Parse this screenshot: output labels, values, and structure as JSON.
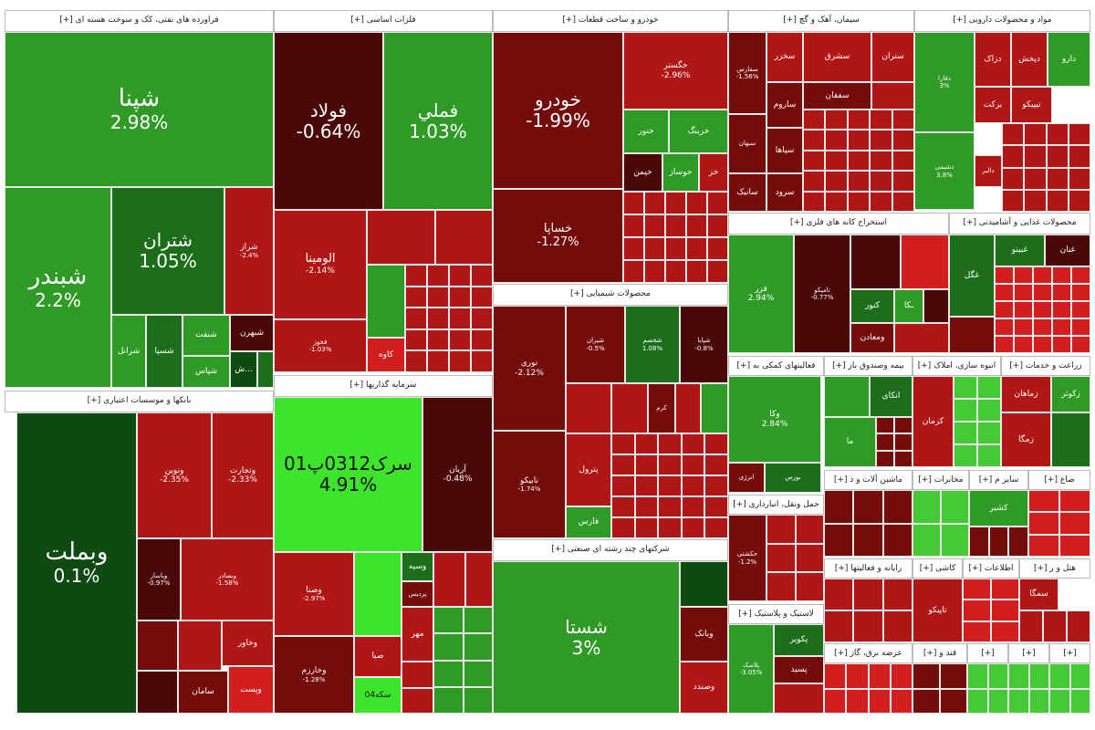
{
  "sectors": {
    "oil": "فراورده های نفتی، کک و سوخت هسته ای [+]",
    "metals": "فلزات اساسی [+]",
    "auto": "خودرو و ساخت قطعات [+]",
    "cement": "سیمان، آهک و گچ [+]",
    "pharma": "مواد و محصولات دارویی [+]",
    "banks": "بانکها و موسسات اعتباری [+]",
    "invest": "سرمایه گذاریها [+]",
    "chem": "محصولات شیمیایی [+]",
    "multi": "شرکتهای چند رشته ای صنعتی [+]",
    "mining": "استخراج کانه های فلزی [+]",
    "food": "محصولات غذایی و آشامیدنی [+]",
    "support": "فعالیتهای کمکی به [+]",
    "insurance": "بیمه وصندوق باز [+]",
    "build": "انبوه سازی، املاک [+]",
    "agri": "زراعت و خدمات [+]",
    "transport": "حمل ونقل، انبارداری [+]",
    "machine": "ماشین آلات و د [+]",
    "telecom": "مخابرات [+]",
    "other1": "سایر م [+]",
    "other2": "صاع [+]",
    "rubber": "لاستیک و پلاستیک [+]",
    "computer": "رایانه و فعالیتها [+]",
    "mnt": "کاشی [+]",
    "info": "اطلاعات [+]",
    "hotel": "هتل و ر [+]",
    "power": "عرضه برق، گاز [+]",
    "wood": "قند و [+]",
    "p1": "[+]",
    "p2": "[+]",
    "p3": "[+]",
    "p4": "[+]"
  },
  "tiles": {
    "shpna": {
      "n": "شپنا",
      "v": "2.98%"
    },
    "shbandar": {
      "n": "شبندر",
      "v": "2.2%"
    },
    "shetran": {
      "n": "شتران",
      "v": "1.05%"
    },
    "shiraz": {
      "n": "شراز",
      "v": "-2.4%"
    },
    "sharanol": {
      "n": "شرانل"
    },
    "shsina": {
      "n": "شسپا"
    },
    "shafaf": {
      "n": "شنفت"
    },
    "shpas": {
      "n": "شپاس"
    },
    "shbehran": {
      "n": "شبهرن"
    },
    "sh": {
      "n": "ش..."
    },
    "vbmellat": {
      "n": "وبملت",
      "v": "0.1%"
    },
    "vnovin": {
      "n": "ونوین",
      "v": "-2.35%"
    },
    "vtejarat": {
      "n": "وتجارت",
      "v": "-2.33%"
    },
    "vpasar": {
      "n": "وپاسار",
      "v": "-0.97%"
    },
    "vbsader": {
      "n": "وبصادر",
      "v": "-1.58%"
    },
    "vkhavar": {
      "n": "وخاور"
    },
    "saman": {
      "n": "سامان"
    },
    "vpost": {
      "n": "وپست"
    },
    "foolad": {
      "n": "فولاد",
      "v": "-0.64%"
    },
    "fameli": {
      "n": "فملي",
      "v": "1.03%"
    },
    "alumina": {
      "n": "الومينا",
      "v": "-2.14%"
    },
    "kaveh": {
      "n": "کاوه"
    },
    "fkhooz": {
      "n": "فخوز",
      "v": "-1.03%"
    },
    "serk": {
      "n": "سرک0312پ01",
      "v": "4.91%"
    },
    "arian": {
      "n": "آریان",
      "v": "-0.48%"
    },
    "vsina": {
      "n": "وصنا",
      "v": "-2.97%"
    },
    "vkhazar": {
      "n": "وخارزم",
      "v": "-1.28%"
    },
    "sabanu": {
      "n": "صبا"
    },
    "vsipe": {
      "n": "وسپه"
    },
    "pardis": {
      "n": "پردیس"
    },
    "mehr": {
      "n": "مهر"
    },
    "sekeh": {
      "n": "سکه04"
    },
    "khodro": {
      "n": "خودرو",
      "v": "-1.99%"
    },
    "khsapa": {
      "n": "خساپا",
      "v": "-1.27%"
    },
    "khgostar": {
      "n": "خگستر",
      "v": "-2.96%"
    },
    "khnoor": {
      "n": "خنور"
    },
    "khobang": {
      "n": "خرینگ"
    },
    "khsaz": {
      "n": "خوساز"
    },
    "khcheen": {
      "n": "خپمن"
    },
    "khaz": {
      "n": "خز"
    },
    "noori": {
      "n": "نوری",
      "v": "-2.12%"
    },
    "nabiko": {
      "n": "نابیکو",
      "v": "-1.74%"
    },
    "shiran": {
      "n": "شیران",
      "v": "-0.5%"
    },
    "shkhazar": {
      "n": "شخصم",
      "v": "1.08%"
    },
    "shpaya": {
      "n": "شپایا",
      "v": "-0.8%"
    },
    "peterol": {
      "n": "پترول"
    },
    "fars": {
      "n": "فارس"
    },
    "karam": {
      "n": "کرم"
    },
    "shasta": {
      "n": "شستا",
      "v": "3%"
    },
    "vbank": {
      "n": "وبانک"
    },
    "vsadid": {
      "n": "وصندد"
    },
    "sekhazar": {
      "n": "سخزر"
    },
    "shargh": {
      "n": "سشرق"
    },
    "setran": {
      "n": "ستران"
    },
    "seghan": {
      "n": "سفقان"
    },
    "sarom": {
      "n": "ساروم"
    },
    "sfars": {
      "n": "سفارس",
      "v": "-1.56%"
    },
    "sipaha": {
      "n": "سپاها"
    },
    "sarood": {
      "n": "سرود"
    },
    "satik": {
      "n": "سانیک"
    },
    "sebhan": {
      "n": "سبهان"
    },
    "dosa": {
      "n": "دارو"
    },
    "dpaksh": {
      "n": "دپخش"
    },
    "dzahravi": {
      "n": "دزاک"
    },
    "dbarkat": {
      "n": "برکت"
    },
    "tipiko": {
      "n": "تیپیکو"
    },
    "dalbor": {
      "n": "دالبر"
    },
    "dfara": {
      "n": "دفارا",
      "v": "3%"
    },
    "dsh": {
      "n": "دشیمی",
      "v": "3.8%"
    },
    "fazar": {
      "n": "فزر",
      "v": "2.94%"
    },
    "tamiko": {
      "n": "تامیکو",
      "v": "-0.77%"
    },
    "kanoor": {
      "n": "کنور"
    },
    "vmaaden": {
      "n": "ومعادن"
    },
    "kka": {
      "n": "ـکا"
    },
    "ghgol": {
      "n": "غگل"
    },
    "ghbino": {
      "n": "غبینو"
    },
    "ghnan": {
      "n": "غنان"
    },
    "vk": {
      "n": "وکا",
      "v": "2.84%"
    },
    "energy": {
      "n": "انرژی"
    },
    "boors": {
      "n": "بورس"
    },
    "atkai": {
      "n": "اتکای"
    },
    "ma": {
      "n": "ما"
    },
    "kerman": {
      "n": "کرمان"
    },
    "zamahan": {
      "n": "زماهان"
    },
    "zkosh": {
      "n": "زکوثر"
    },
    "zmagha": {
      "n": "زمگا"
    },
    "hkashti": {
      "n": "حکشتی",
      "v": "-1.2%"
    },
    "pakhsh": {
      "n": "پکویر"
    },
    "psid": {
      "n": "پسید"
    },
    "plastic": {
      "n": "پلاسک",
      "v": "-3.05%"
    },
    "sangav": {
      "n": "سمگا"
    },
    "kashir": {
      "n": "کشیر"
    },
    "tapiko": {
      "n": "تاپیکو"
    }
  }
}
